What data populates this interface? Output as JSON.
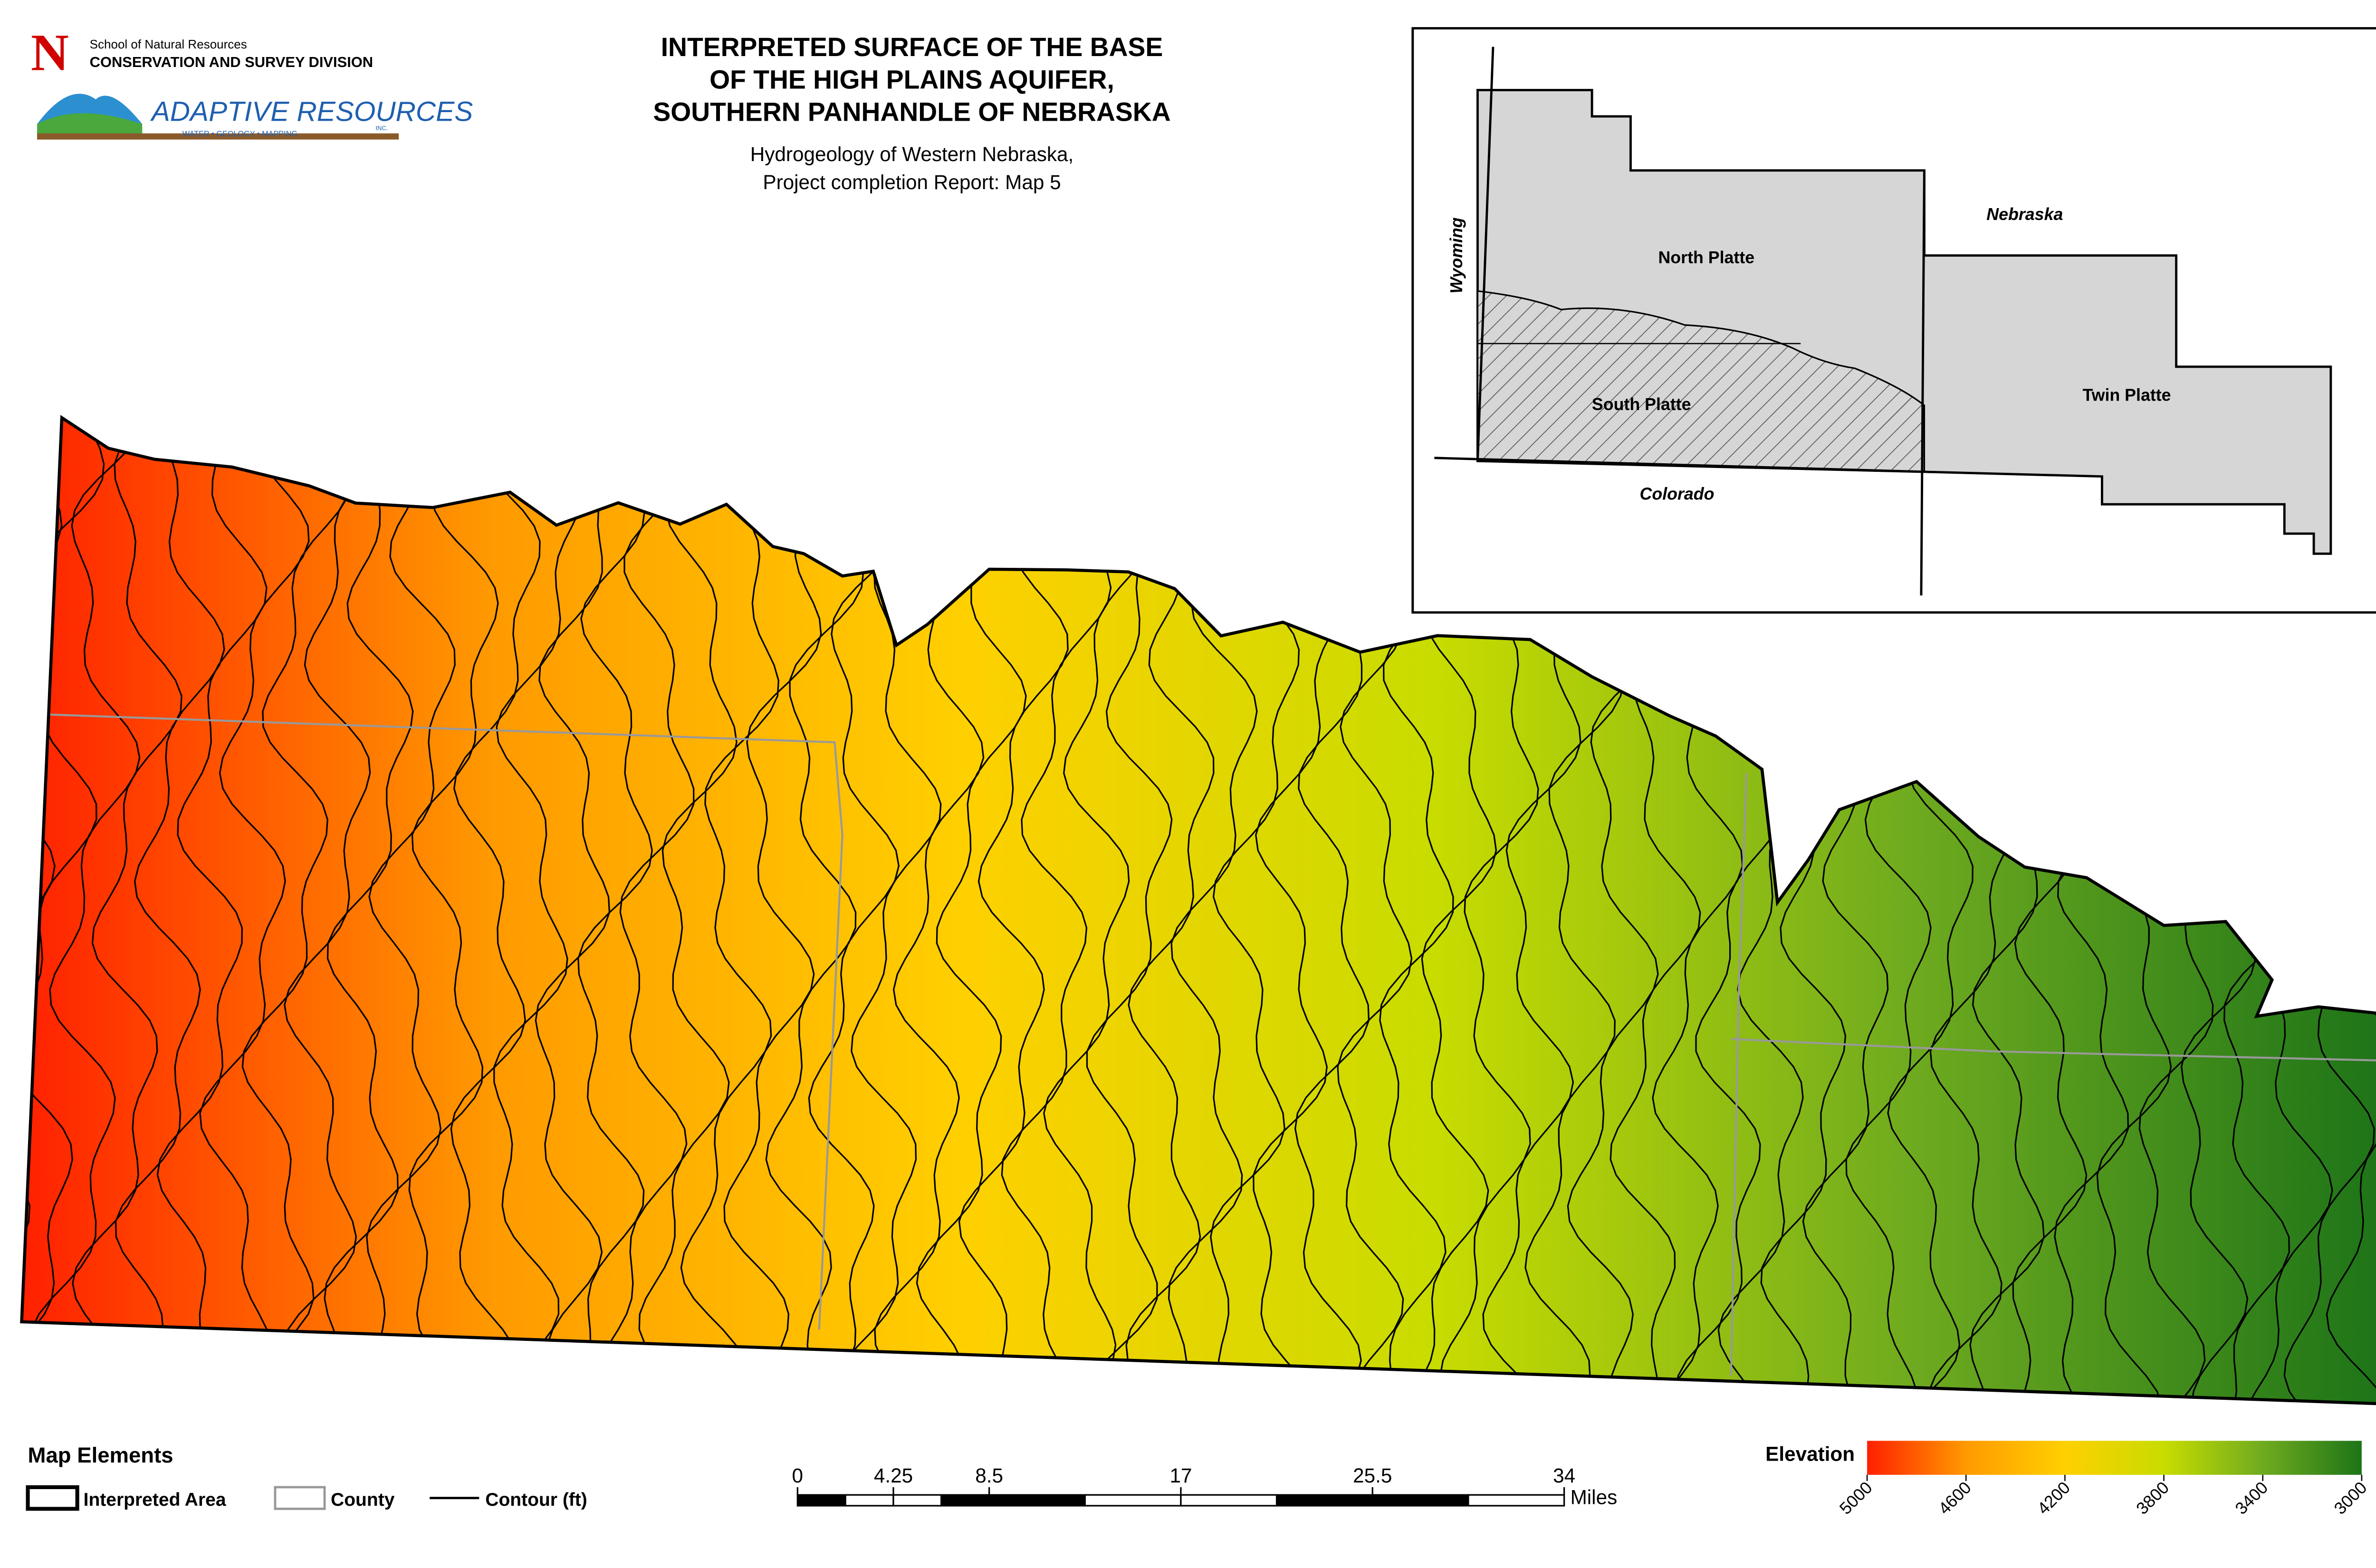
{
  "header": {
    "title_lines": [
      "INTERPRETED SURFACE OF THE BASE",
      "OF THE HIGH PLAINS AQUIFER,",
      "SOUTHERN PANHANDLE OF NEBRASKA"
    ],
    "subtitle_lines": [
      "Hydrogeology of Western Nebraska,",
      "Project completion Report: Map 5"
    ]
  },
  "logos": {
    "unl_school": "School of Natural Resources",
    "unl_division": "CONSERVATION AND SURVEY DIVISION",
    "adaptive_name": "ADAPTIVE RESOURCES",
    "adaptive_inc": "INC.",
    "adaptive_tagline": "WATER • GEOLOGY • MAPPING"
  },
  "inset": {
    "wyoming": "Wyoming",
    "nebraska": "Nebraska",
    "north_platte": "North Platte",
    "south_platte": "South Platte",
    "twin_platte": "Twin Platte",
    "colorado": "Colorado"
  },
  "north_arrow": "N",
  "legend": {
    "title": "Map Elements",
    "interpreted_area": "Interpreted Area",
    "county": "County",
    "contour": "Contour (ft)"
  },
  "scale_bar": {
    "lim": [
      0,
      34
    ],
    "ticks": [
      0,
      4.25,
      8.5,
      17,
      25.5,
      34
    ],
    "unit": "Miles"
  },
  "elevation": {
    "title": "Elevation",
    "lim": [
      5000,
      3000
    ],
    "ticks": [
      5000,
      4600,
      4200,
      3800,
      3400,
      3000
    ],
    "colors": [
      "#ff2000",
      "#ff9a00",
      "#ffd000",
      "#c8dc00",
      "#6fab1f",
      "#1e7418"
    ]
  }
}
